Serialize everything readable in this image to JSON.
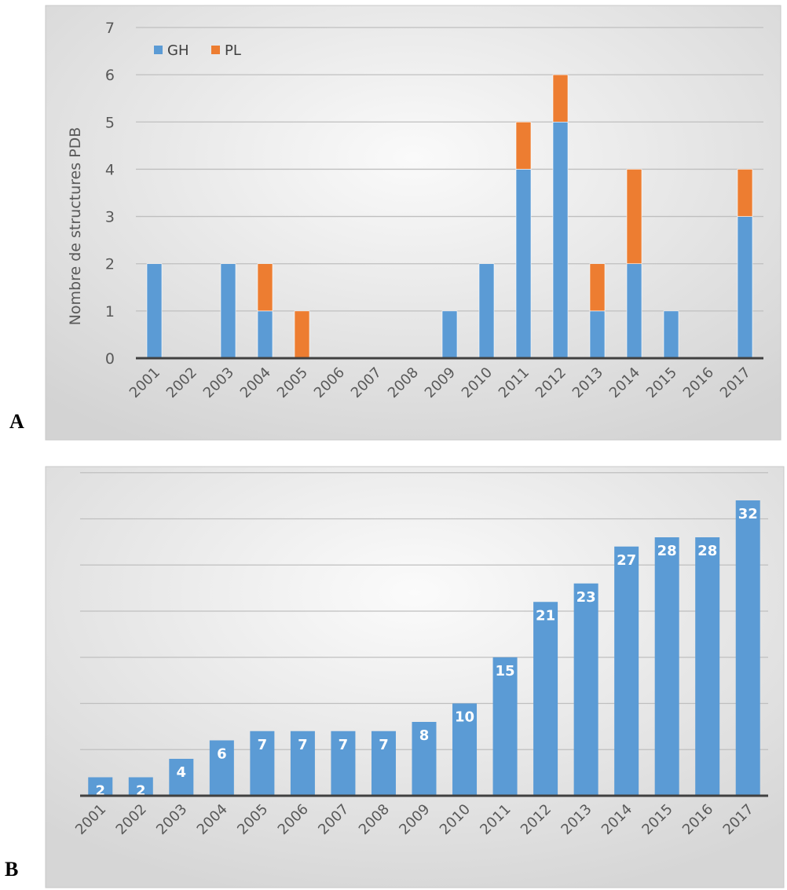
{
  "colors": {
    "gh": "#5b9bd5",
    "pl": "#ed7d31",
    "grid": "#bfbfbf",
    "axis": "#404040"
  },
  "panels": {
    "a_label": "A",
    "b_label": "B"
  },
  "chart_data": [
    {
      "type": "bar",
      "stacked": true,
      "categories": [
        "2001",
        "2002",
        "2003",
        "2004",
        "2005",
        "2006",
        "2007",
        "2008",
        "2009",
        "2010",
        "2011",
        "2012",
        "2013",
        "2014",
        "2015",
        "2016",
        "2017"
      ],
      "series": [
        {
          "name": "GH",
          "values": [
            2,
            0,
            2,
            1,
            0,
            0,
            0,
            0,
            1,
            2,
            4,
            5,
            1,
            2,
            1,
            0,
            3
          ]
        },
        {
          "name": "PL",
          "values": [
            0,
            0,
            0,
            1,
            1,
            0,
            0,
            0,
            0,
            0,
            1,
            1,
            1,
            2,
            0,
            0,
            1
          ]
        }
      ],
      "ylabel": "Nombre de structures PDB",
      "xlabel": "",
      "ylim": [
        0,
        7
      ],
      "yticks": [
        0,
        1,
        2,
        3,
        4,
        5,
        6,
        7
      ],
      "grid": true,
      "legend": "top-left"
    },
    {
      "type": "bar",
      "categories": [
        "2001",
        "2002",
        "2003",
        "2004",
        "2005",
        "2006",
        "2007",
        "2008",
        "2009",
        "2010",
        "2011",
        "2012",
        "2013",
        "2014",
        "2015",
        "2016",
        "2017"
      ],
      "values": [
        2,
        2,
        4,
        6,
        7,
        7,
        7,
        7,
        8,
        10,
        15,
        21,
        23,
        27,
        28,
        28,
        32
      ],
      "data_labels": true,
      "xlabel": "",
      "ylabel": "",
      "ylim": [
        0,
        35
      ],
      "grid": true
    }
  ]
}
